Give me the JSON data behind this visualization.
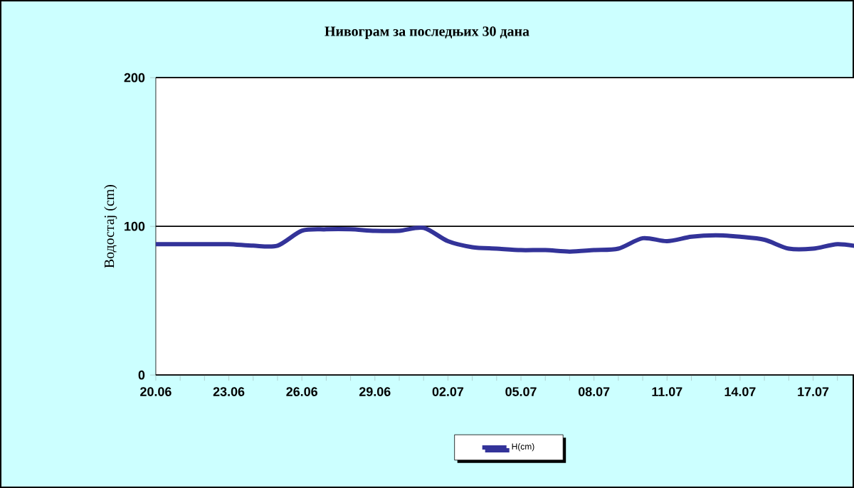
{
  "chart_data": {
    "type": "line",
    "title": "Нивограм за последњих 30 дана",
    "ylabel": "Водостај (cm)",
    "categories": [
      "20.06",
      null,
      null,
      "23.06",
      null,
      null,
      "26.06",
      null,
      null,
      "29.06",
      null,
      null,
      "02.07",
      null,
      null,
      "05.07",
      null,
      null,
      "08.07",
      null,
      null,
      "11.07",
      null,
      null,
      "14.07",
      null,
      null,
      "17.07",
      null,
      null
    ],
    "series": [
      {
        "name": "H(cm)",
        "color": "#333399",
        "values": [
          88,
          88,
          88,
          88,
          87,
          87,
          97,
          98,
          98,
          97,
          97,
          99,
          90,
          86,
          85,
          84,
          84,
          83,
          84,
          85,
          92,
          90,
          93,
          94,
          93,
          91,
          85,
          85,
          88,
          86
        ]
      }
    ],
    "ylim": [
      0,
      200
    ],
    "yticks": [
      0,
      100,
      200
    ],
    "grid": "y",
    "legend": "bottom",
    "marker": "none",
    "line_style": "solid"
  }
}
